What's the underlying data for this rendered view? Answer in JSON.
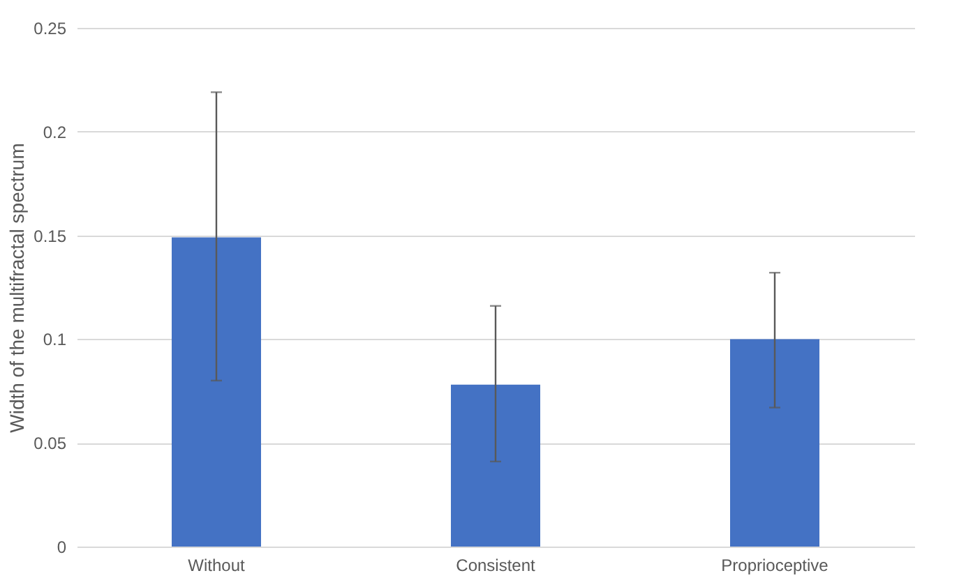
{
  "chart_data": {
    "type": "bar",
    "ylabel": "Width of the multifractal spectrum",
    "categories": [
      "Without",
      "Consistent",
      "Proprioceptive"
    ],
    "values": [
      0.149,
      0.078,
      0.1
    ],
    "errors": [
      [
        0.08,
        0.219
      ],
      [
        0.041,
        0.116
      ],
      [
        0.067,
        0.132
      ]
    ],
    "color": "#4472c4",
    "ylim": [
      0,
      0.25
    ],
    "yticks": [
      0,
      0.05,
      0.1,
      0.15,
      0.2,
      0.25
    ],
    "grid": "y"
  }
}
